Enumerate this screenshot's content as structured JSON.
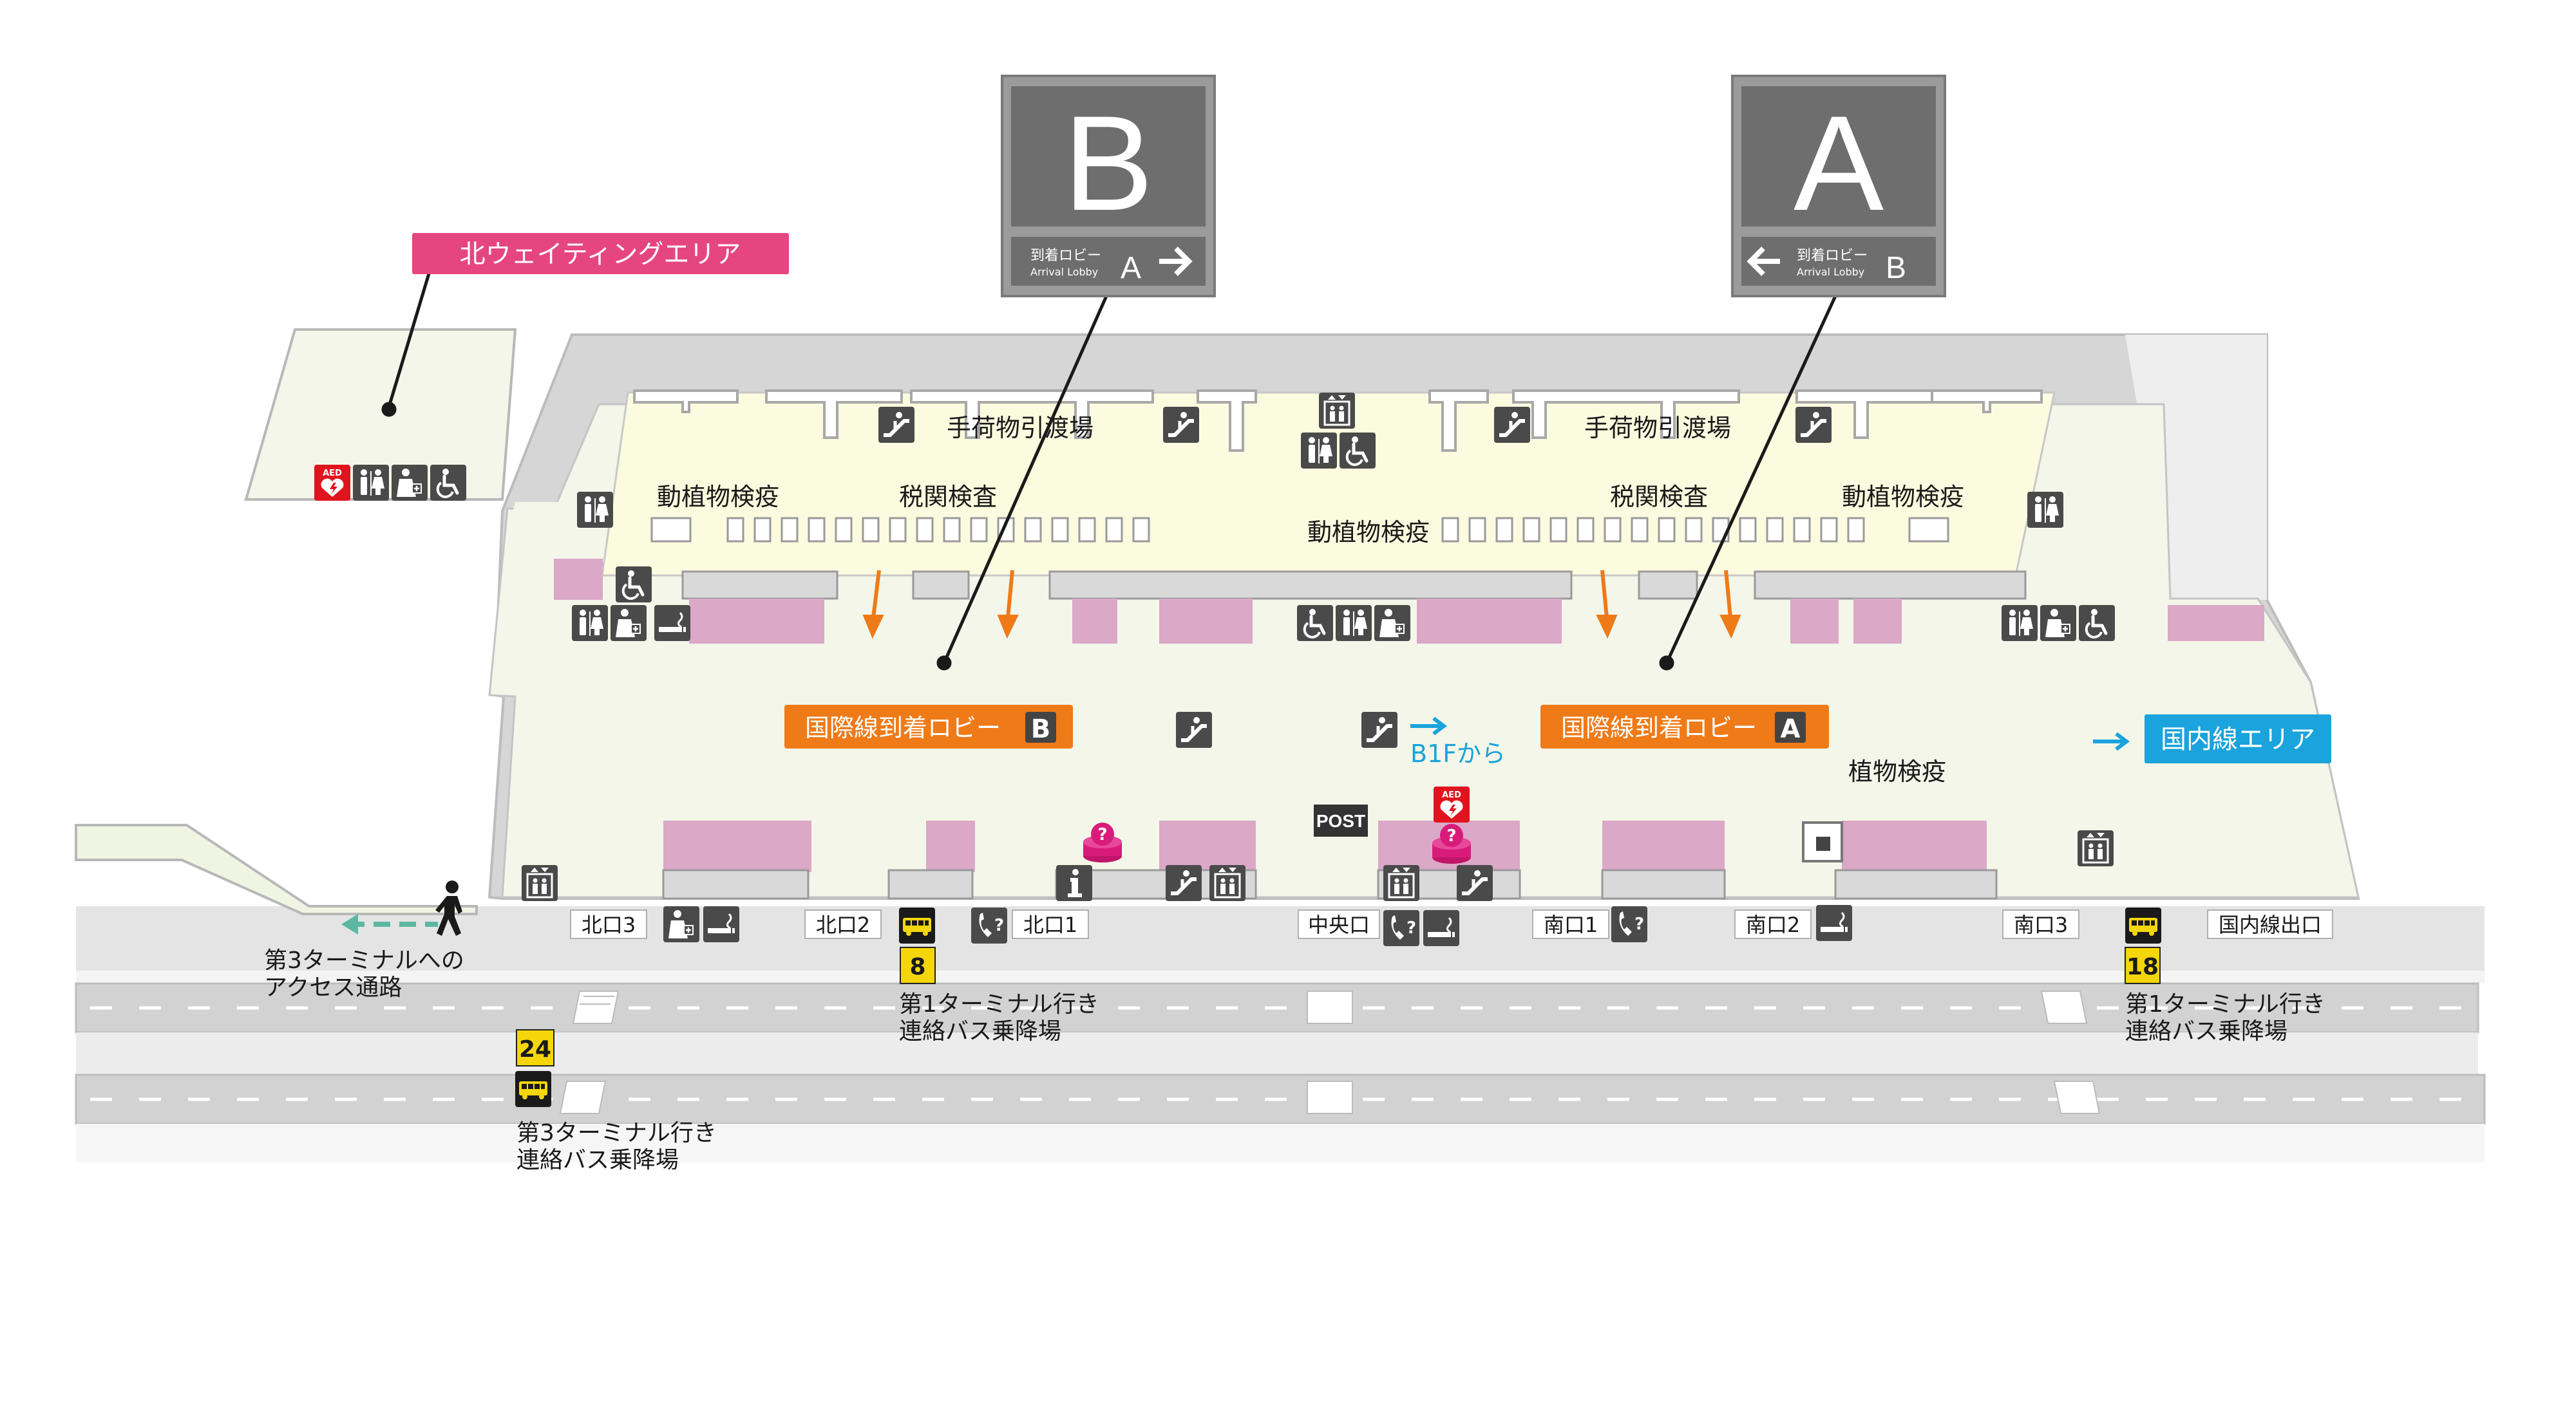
{
  "colors": {
    "floor": "#f3f6e9",
    "building_gray": "#d4d4d4",
    "customs_yellow": "#fbfbdf",
    "shop_pink": "#dba8c8",
    "arrival_orange": "#ef7a18",
    "domestic_blue": "#1aa3dc",
    "north_wait_pink": "#e5467f",
    "sign_gray": "#6e6e6e",
    "icon_gray": "#4a4a4a",
    "bus_yellow": "#f5d60a"
  },
  "lobby_signs": {
    "B": {
      "letter": "B",
      "jp": "到着ロビー",
      "en": "Arrival Lobby",
      "to": "A",
      "arrow": "right-arrow"
    },
    "A": {
      "letter": "A",
      "jp": "到着ロビー",
      "en": "Arrival Lobby",
      "to": "B",
      "arrow": "left-arrow"
    }
  },
  "areas": {
    "north_waiting": "北ウェイティングエリア",
    "arrival_lobby_B": "国際線到着ロビー",
    "arrival_lobby_A": "国際線到着ロビー",
    "lobby_B_letter": "B",
    "lobby_A_letter": "A",
    "domestic": "国内線エリア",
    "from_b1f": "B1Fから"
  },
  "facilities": {
    "baggage_claim_left": "手荷物引渡場",
    "baggage_claim_right": "手荷物引渡場",
    "animal_quarantine_left": "動植物検疫",
    "animal_quarantine_center": "動植物検疫",
    "animal_quarantine_right": "動植物検疫",
    "customs_left": "税関検査",
    "customs_right": "税関検査",
    "plant_quarantine": "植物検疫",
    "post": "POST",
    "aed": "AED"
  },
  "exits": [
    "北口3",
    "北口2",
    "北口1",
    "中央口",
    "南口1",
    "南口2",
    "南口3",
    "国内線出口"
  ],
  "bus_stops": [
    {
      "number": "8",
      "line1": "第1ターミナル行き",
      "line2": "連絡バス乗降場"
    },
    {
      "number": "18",
      "line1": "第1ターミナル行き",
      "line2": "連絡バス乗降場"
    },
    {
      "number": "24",
      "line1": "第3ターミナル行き",
      "line2": "連絡バス乗降場"
    }
  ],
  "access_path": {
    "line1": "第3ターミナルへの",
    "line2": "アクセス通路"
  },
  "icons": [
    "aed-icon",
    "restroom-icon",
    "nursing-room-icon",
    "wheelchair-icon",
    "escalator-icon",
    "elevator-icon",
    "smoking-area-icon",
    "phone-icon",
    "information-icon",
    "question-icon",
    "bus-icon",
    "walking-person-icon",
    "right-arrow-icon",
    "left-arrow-icon"
  ]
}
